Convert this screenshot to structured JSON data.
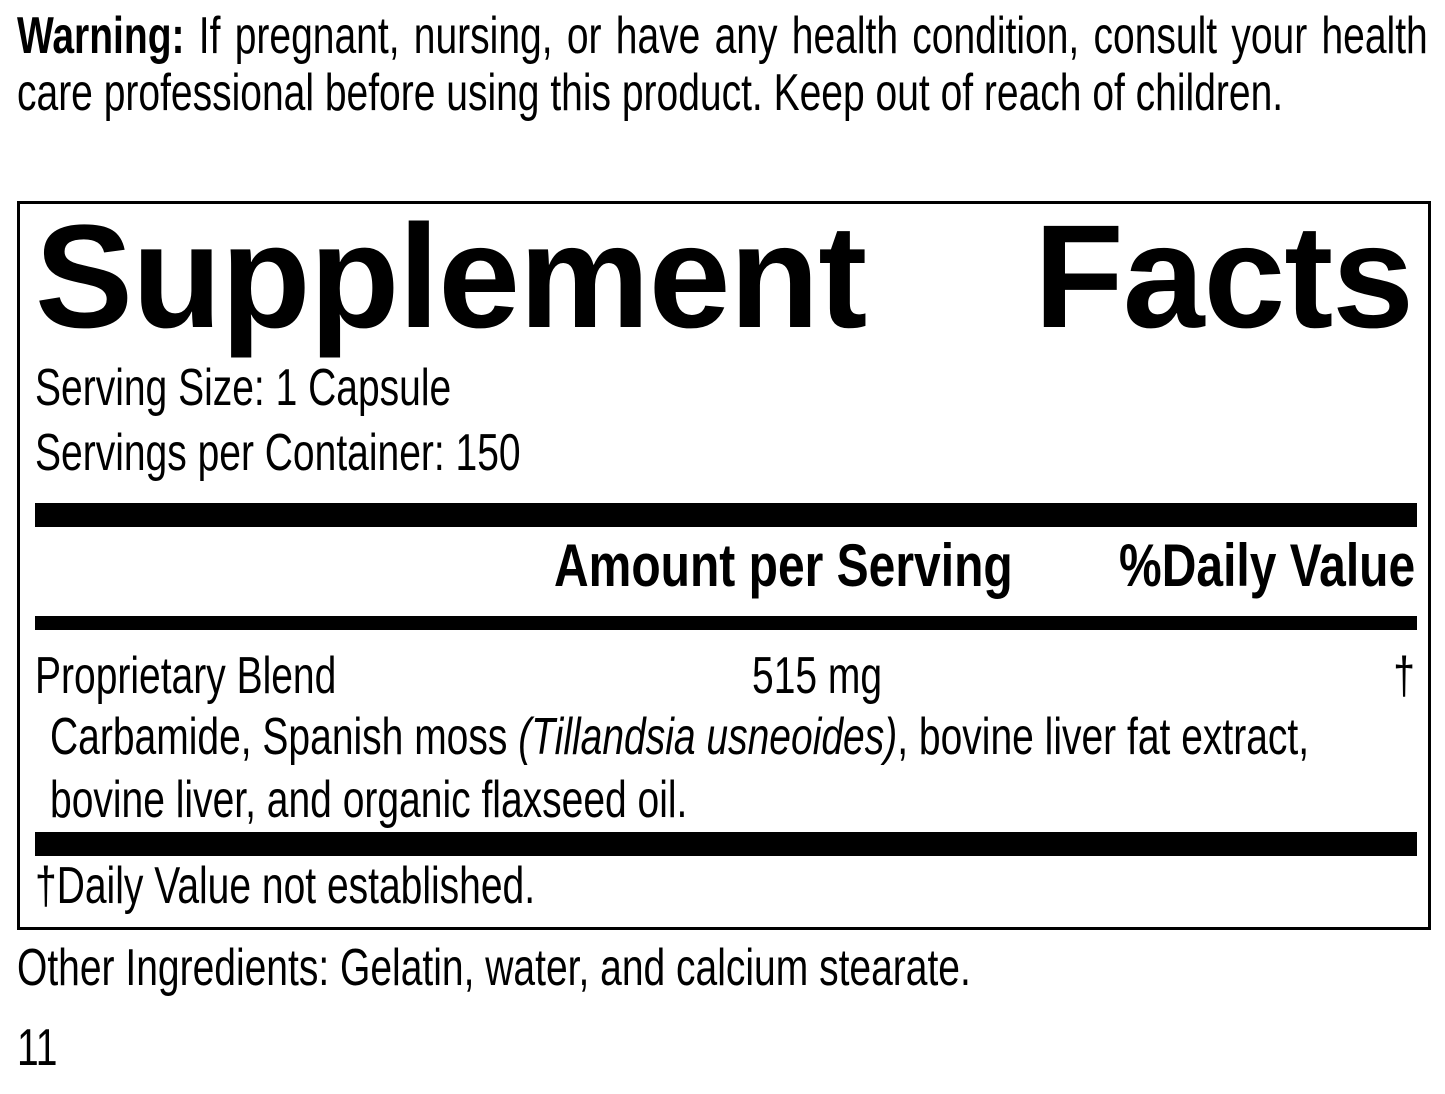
{
  "colors": {
    "ink": "#000000",
    "paper": "#ffffff"
  },
  "warning": {
    "label": "Warning:",
    "text": " If pregnant, nursing, or have any health condition, consult your health care professional before using this product. Keep out of reach of children."
  },
  "panel": {
    "title_left": "Supplement",
    "title_right": "Facts",
    "serving_size": "Serving Size: 1 Capsule",
    "servings_per_container": "Servings per Container: 150",
    "header": {
      "amount": "Amount per Serving",
      "daily_value": "%Daily Value"
    },
    "blend": {
      "name": "Proprietary Blend",
      "amount": "515 mg",
      "daily_value": "†",
      "description_pre": "Carbamide, Spanish moss ",
      "description_italic": "(Tillandsia usneoides)",
      "description_post": ", bovine liver fat extract, bovine liver, and organic flaxseed oil."
    },
    "footnote": "†Daily Value not established."
  },
  "other_ingredients": "Other Ingredients: Gelatin, water, and calcium stearate.",
  "page_number": "11"
}
